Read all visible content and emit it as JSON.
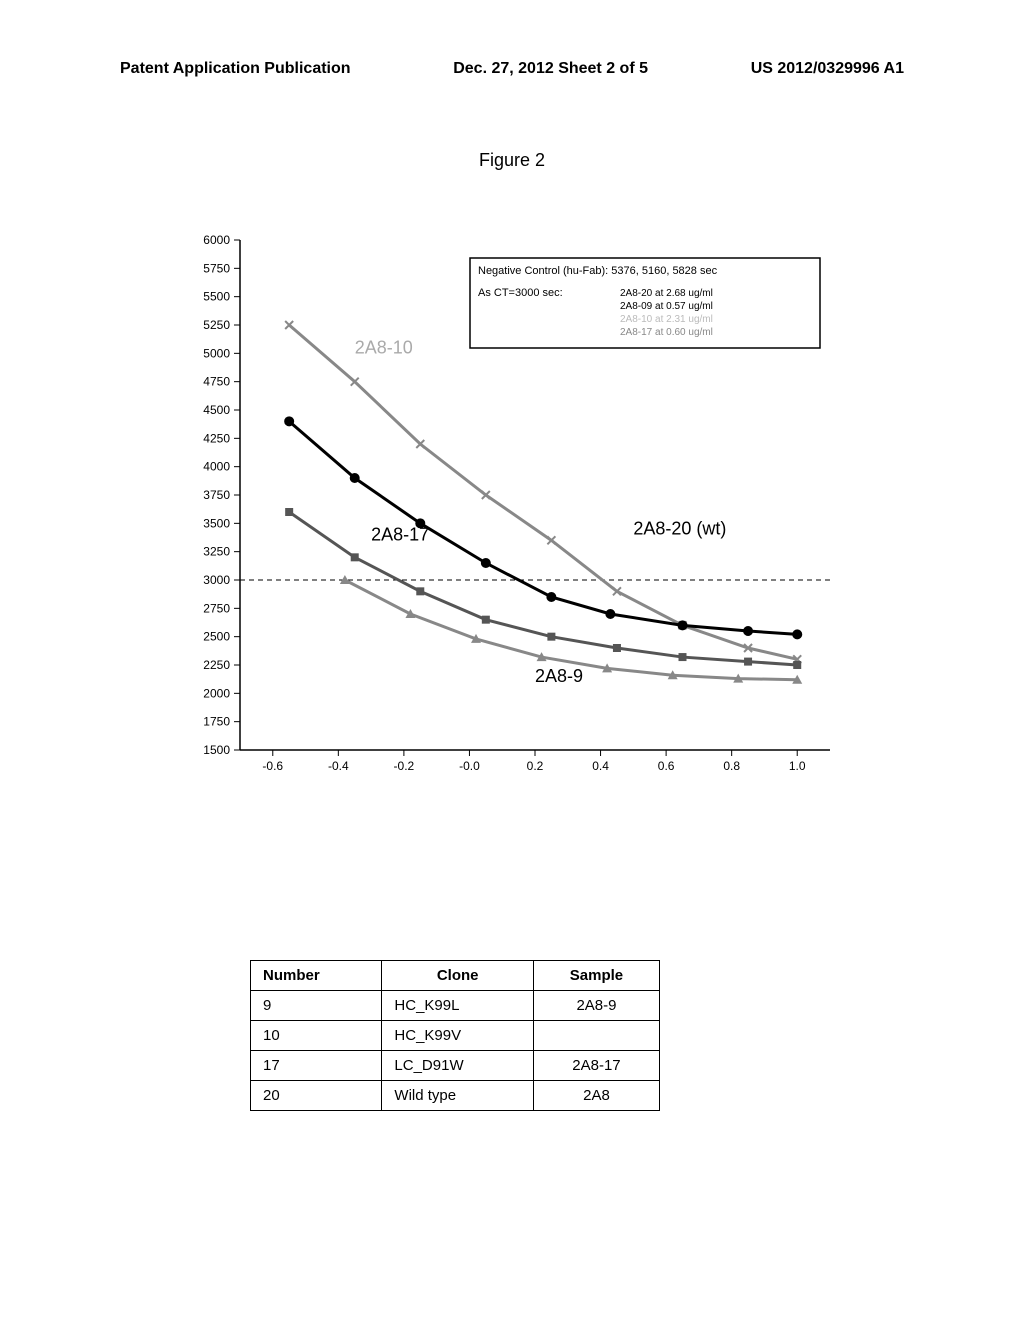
{
  "header": {
    "left": "Patent Application Publication",
    "center": "Dec. 27, 2012  Sheet 2 of 5",
    "right": "US 2012/0329996 A1"
  },
  "figure_title": "Figure 2",
  "chart": {
    "type": "line",
    "xlim": [
      -0.7,
      1.1
    ],
    "ylim": [
      1500,
      6000
    ],
    "xtick_start": -0.6,
    "xtick_step": 0.2,
    "xticks": [
      "-0.6",
      "-0.4",
      "-0.2",
      "-0.0",
      "0.2",
      "0.4",
      "0.6",
      "0.8",
      "1.0"
    ],
    "ytick_start": 1500,
    "ytick_step": 250,
    "yticks": [
      "1500",
      "1750",
      "2000",
      "2250",
      "2500",
      "2750",
      "3000",
      "3250",
      "3500",
      "3750",
      "4000",
      "4250",
      "4500",
      "4750",
      "5000",
      "5250",
      "5500",
      "5750",
      "6000"
    ],
    "ref_line_y": 3000,
    "background_color": "#ffffff",
    "axis_color": "#000000",
    "ref_line_color": "#000000",
    "series": [
      {
        "name": "2A8-10",
        "color": "#888888",
        "label_x": -0.35,
        "label_y": 5000,
        "label_color": "#aaaaaa",
        "marker": "x",
        "points": [
          [
            -0.55,
            5250
          ],
          [
            -0.35,
            4750
          ],
          [
            -0.15,
            4200
          ],
          [
            0.05,
            3750
          ],
          [
            0.25,
            3350
          ],
          [
            0.45,
            2900
          ],
          [
            0.65,
            2600
          ],
          [
            0.85,
            2400
          ],
          [
            1.0,
            2300
          ]
        ]
      },
      {
        "name": "2A8-20 (wt)",
        "color": "#000000",
        "label_x": 0.5,
        "label_y": 3400,
        "label_color": "#000000",
        "marker": "circle",
        "points": [
          [
            -0.55,
            4400
          ],
          [
            -0.35,
            3900
          ],
          [
            -0.15,
            3500
          ],
          [
            0.05,
            3150
          ],
          [
            0.25,
            2850
          ],
          [
            0.43,
            2700
          ],
          [
            0.65,
            2600
          ],
          [
            0.85,
            2550
          ],
          [
            1.0,
            2520
          ]
        ]
      },
      {
        "name": "2A8-17",
        "color": "#555555",
        "label_x": -0.3,
        "label_y": 3350,
        "label_color": "#000000",
        "marker": "square",
        "points": [
          [
            -0.55,
            3600
          ],
          [
            -0.35,
            3200
          ],
          [
            -0.15,
            2900
          ],
          [
            0.05,
            2650
          ],
          [
            0.25,
            2500
          ],
          [
            0.45,
            2400
          ],
          [
            0.65,
            2320
          ],
          [
            0.85,
            2280
          ],
          [
            1.0,
            2250
          ]
        ]
      },
      {
        "name": "2A8-9",
        "color": "#888888",
        "label_x": 0.2,
        "label_y": 2100,
        "label_color": "#000000",
        "marker": "triangle",
        "points": [
          [
            -0.38,
            3000
          ],
          [
            -0.18,
            2700
          ],
          [
            0.02,
            2480
          ],
          [
            0.22,
            2320
          ],
          [
            0.42,
            2220
          ],
          [
            0.62,
            2160
          ],
          [
            0.82,
            2130
          ],
          [
            1.0,
            2120
          ]
        ]
      }
    ],
    "legend": {
      "title": "Negative Control (hu-Fab): 5376, 5160, 5828 sec",
      "subtitle": "As CT=3000 sec:",
      "items": [
        {
          "text": "2A8-20 at 2.68 ug/ml",
          "color": "#000000"
        },
        {
          "text": "2A8-09 at 0.57 ug/ml",
          "color": "#000000"
        },
        {
          "text": "2A8-10 at 2.31 ug/ml",
          "color": "#bbbbbb"
        },
        {
          "text": "2A8-17 at 0.60 ug/ml",
          "color": "#888888"
        }
      ]
    }
  },
  "table": {
    "columns": [
      "Number",
      "Clone",
      "Sample"
    ],
    "rows": [
      [
        "9",
        "HC_K99L",
        "2A8-9"
      ],
      [
        "10",
        "HC_K99V",
        ""
      ],
      [
        "17",
        "LC_D91W",
        "2A8-17"
      ],
      [
        "20",
        "Wild type",
        "2A8"
      ]
    ]
  }
}
